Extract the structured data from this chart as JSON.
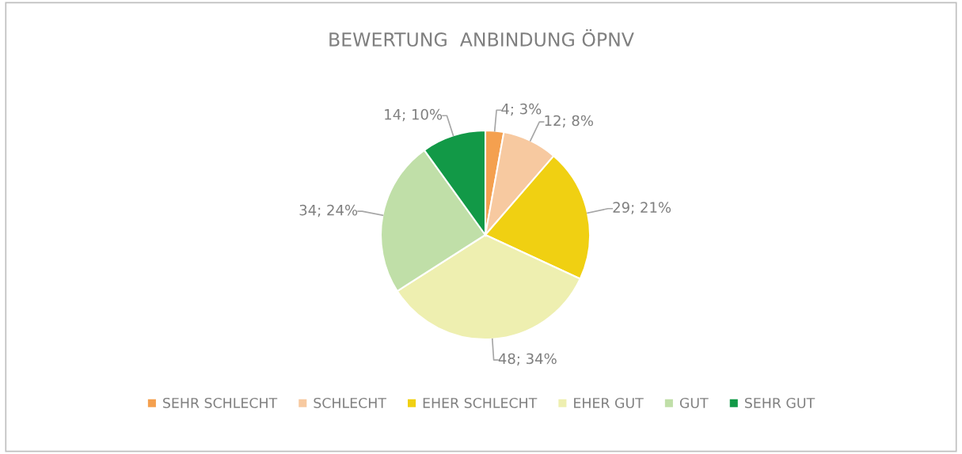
{
  "chart_data": {
    "type": "pie",
    "title": "BEWERTUNG  ANBINDUNG ÖPNV",
    "categories": [
      "SEHR SCHLECHT",
      "SCHLECHT",
      "EHER SCHLECHT",
      "EHER GUT",
      "GUT",
      "SEHR GUT"
    ],
    "values": [
      4,
      12,
      29,
      48,
      34,
      14
    ],
    "value_labels": [
      "4; 3%",
      "12; 8%",
      "29; 21%",
      "48; 34%",
      "34; 24%",
      "14; 10%"
    ],
    "colors": [
      "#f4a04f",
      "#f7c9a0",
      "#f0d012",
      "#eeefb0",
      "#c0dfa8",
      "#129947"
    ],
    "legend": "bottom"
  }
}
